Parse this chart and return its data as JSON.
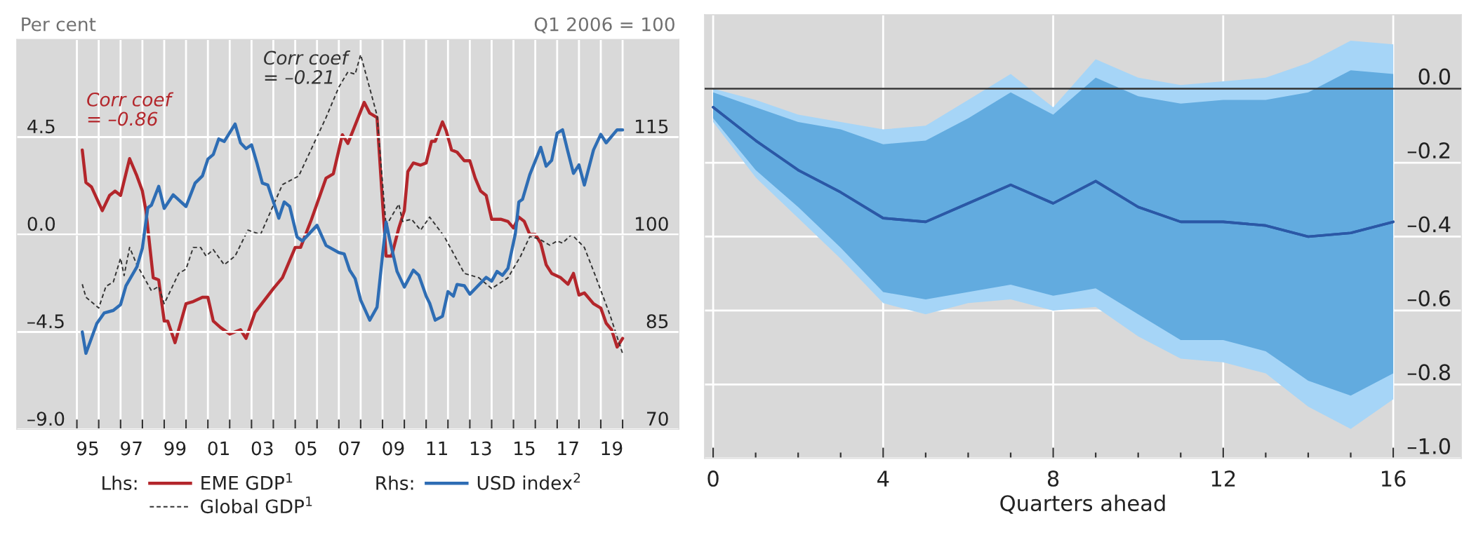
{
  "chart_data": [
    {
      "type": "line",
      "ylabel": "Per cent",
      "y2label": "Q1 2006 = 100",
      "xlim": [
        "1992-04",
        "2022-08"
      ],
      "xticks": [
        {
          "value": "1995-01",
          "label": null
        },
        {
          "value": "1996-01",
          "label": null
        },
        {
          "value": "1997-01",
          "label": null
        },
        {
          "value": "1998-01",
          "label": null
        },
        {
          "value": "1999-01",
          "label": null
        },
        {
          "value": "2000-01",
          "label": null
        },
        {
          "value": "2001-01",
          "label": null
        },
        {
          "value": "2002-01",
          "label": null
        },
        {
          "value": "2003-01",
          "label": null
        },
        {
          "value": "2004-01",
          "label": null
        },
        {
          "value": "2005-01",
          "label": null
        },
        {
          "value": "2006-01",
          "label": null
        },
        {
          "value": "2007-01",
          "label": null
        },
        {
          "value": "2008-01",
          "label": null
        },
        {
          "value": "2009-01",
          "label": null
        },
        {
          "value": "2010-01",
          "label": null
        },
        {
          "value": "2011-01",
          "label": null
        },
        {
          "value": "2012-01",
          "label": null
        },
        {
          "value": "2013-01",
          "label": null
        },
        {
          "value": "2014-01",
          "label": null
        },
        {
          "value": "2015-01",
          "label": null
        },
        {
          "value": "2016-01",
          "label": null
        },
        {
          "value": "2017-01",
          "label": null
        },
        {
          "value": "2018-01",
          "label": null
        },
        {
          "value": "2019-01",
          "label": null
        },
        {
          "value": "2020-01",
          "label": null
        },
        {
          "value": "1995-07",
          "label": "95"
        },
        {
          "value": "1997-07",
          "label": "97"
        },
        {
          "value": "1999-07",
          "label": "99"
        },
        {
          "value": "2001-07",
          "label": "01"
        },
        {
          "value": "2003-07",
          "label": "03"
        },
        {
          "value": "2005-07",
          "label": "05"
        },
        {
          "value": "2007-07",
          "label": "07"
        },
        {
          "value": "2009-07",
          "label": "09"
        },
        {
          "value": "2011-07",
          "label": "11"
        },
        {
          "value": "2013-07",
          "label": "13"
        },
        {
          "value": "2015-07",
          "label": "15"
        },
        {
          "value": "2017-07",
          "label": "17"
        },
        {
          "value": "2019-07",
          "label": "19"
        }
      ],
      "ylim": [
        -9,
        9
      ],
      "yticks": [
        {
          "value": -9,
          "label": "–9.0"
        },
        {
          "value": -4.5,
          "label": "–4.5"
        },
        {
          "value": 0,
          "label": "0.0"
        },
        4.5
      ],
      "y2lim": [
        70,
        130
      ],
      "y2ticks": [
        70,
        85,
        100,
        115
      ],
      "grid": true,
      "legend": "bottom",
      "ref_lines": [
        {
          "axis": "y",
          "value": 0
        }
      ],
      "annotations": [
        "Corr coef\n= –0.86",
        "Corr coef\n= –0.21",
        "Lhs:",
        "Rhs:"
      ],
      "series": [
        {
          "name": "EME GDP$^{1}$",
          "color": "#b3262b",
          "x": [
            "1995-04",
            "1995-06",
            "1995-09",
            "1996-03",
            "1996-07",
            "1996-10",
            "1997-01",
            "1997-06",
            "1997-10",
            "1998-01",
            "1998-03",
            "1998-07",
            "1998-10",
            "1999-01",
            "1999-03",
            "1999-07",
            "2000-01",
            "2000-05",
            "2000-10",
            "2001-01",
            "2001-04",
            "2001-08",
            "2002-01",
            "2002-07",
            "2002-10",
            "2003-03",
            "2004-01",
            "2004-06",
            "2005-01",
            "2005-04",
            "2005-10",
            "2006-06",
            "2006-10",
            "2007-03",
            "2007-06",
            "2008-03",
            "2008-06",
            "2008-10",
            "2009-03",
            "2009-06",
            "2009-10",
            "2010-01",
            "2010-03",
            "2010-06",
            "2010-10",
            "2011-01",
            "2011-04",
            "2011-06",
            "2011-10",
            "2011-12",
            "2012-03",
            "2012-06",
            "2012-10",
            "2013-01",
            "2013-04",
            "2013-07",
            "2013-10",
            "2014-01",
            "2014-06",
            "2014-10",
            "2015-01",
            "2015-04",
            "2015-07",
            "2015-10",
            "2016-01",
            "2016-04",
            "2016-07",
            "2016-10",
            "2017-03",
            "2017-07",
            "2017-10",
            "2018-01",
            "2018-04",
            "2018-09",
            "2019-01",
            "2019-04",
            "2019-07",
            "2019-10",
            "2020-01"
          ],
          "values": [
            3.9,
            2.4,
            2.2,
            1.1,
            1.8,
            2.0,
            1.8,
            3.5,
            2.7,
            2.0,
            1.1,
            -2.0,
            -2.1,
            -4.0,
            -4.0,
            -5.0,
            -3.2,
            -3.1,
            -2.9,
            -2.9,
            -4.0,
            -4.3,
            -4.6,
            -4.4,
            -4.8,
            -3.6,
            -2.5,
            -2.0,
            -0.6,
            -0.6,
            0.7,
            2.6,
            2.8,
            4.6,
            4.2,
            6.1,
            5.6,
            5.4,
            -1.0,
            -1.0,
            0.3,
            1.1,
            2.9,
            3.3,
            3.2,
            3.3,
            4.3,
            4.3,
            5.2,
            4.8,
            3.9,
            3.8,
            3.4,
            3.4,
            2.6,
            2.0,
            1.8,
            0.7,
            0.7,
            0.6,
            0.3,
            0.8,
            0.6,
            0.0,
            0.0,
            -0.4,
            -1.4,
            -1.8,
            -2.0,
            -2.3,
            -1.8,
            -2.8,
            -2.7,
            -3.2,
            -3.4,
            -4.1,
            -4.4,
            -5.2,
            -4.8
          ]
        },
        {
          "name": "Global GDP$^{1}$",
          "color": "#333333",
          "line_style": "dashed",
          "x": [
            "1995-04",
            "1995-06",
            "1996-01",
            "1996-05",
            "1996-09",
            "1997-01",
            "1997-03",
            "1997-06",
            "1997-10",
            "1998-06",
            "1998-10",
            "1999-01",
            "1999-09",
            "2000-01",
            "2000-05",
            "2000-09",
            "2000-12",
            "2001-04",
            "2001-10",
            "2002-04",
            "2002-11",
            "2003-06",
            "2004-06",
            "2005-03",
            "2006-06",
            "2007-01",
            "2007-06",
            "2007-10",
            "2008-01",
            "2008-10",
            "2009-03",
            "2009-10",
            "2009-12",
            "2010-05",
            "2010-10",
            "2011-03",
            "2011-11",
            "2012-10",
            "2013-06",
            "2014-01",
            "2014-10",
            "2015-05",
            "2015-10",
            "2016-03",
            "2016-09",
            "2017-01",
            "2017-04",
            "2017-09",
            "2018-04",
            "2018-10",
            "2019-06",
            "2020-01"
          ],
          "values": [
            -2.3,
            -2.9,
            -3.4,
            -2.4,
            -2.2,
            -1.1,
            -1.9,
            -0.6,
            -1.4,
            -2.6,
            -2.4,
            -3.2,
            -1.8,
            -1.6,
            -0.6,
            -0.6,
            -1.0,
            -0.7,
            -1.4,
            -1.0,
            0.2,
            0.0,
            2.3,
            2.7,
            5.4,
            6.8,
            7.5,
            7.4,
            8.3,
            5.5,
            0.4,
            1.4,
            0.6,
            0.7,
            0.2,
            0.8,
            -0.1,
            -1.8,
            -2.0,
            -2.5,
            -2.0,
            -1.0,
            -0.1,
            -0.2,
            -0.5,
            -0.3,
            -0.4,
            0.0,
            -0.6,
            -1.9,
            -3.7,
            -5.5
          ]
        },
        {
          "name": "USD index$^{2}$",
          "color": "#2e6db4",
          "axis": "y2",
          "x": [
            "1995-04",
            "1995-06",
            "1995-12",
            "1996-04",
            "1996-09",
            "1997-01",
            "1997-04",
            "1997-10",
            "1998-01",
            "1998-04",
            "1998-06",
            "1998-10",
            "1999-01",
            "1999-06",
            "2000-01",
            "2000-06",
            "2000-10",
            "2001-01",
            "2001-04",
            "2001-07",
            "2001-10",
            "2002-04",
            "2002-07",
            "2002-10",
            "2003-01",
            "2003-04",
            "2003-07",
            "2003-10",
            "2004-04",
            "2004-07",
            "2004-10",
            "2005-02",
            "2005-05",
            "2006-01",
            "2006-06",
            "2007-01",
            "2007-04",
            "2007-07",
            "2007-10",
            "2008-01",
            "2008-06",
            "2008-10",
            "2009-03",
            "2009-05",
            "2009-09",
            "2010-01",
            "2010-06",
            "2010-09",
            "2011-01",
            "2011-03",
            "2011-06",
            "2011-10",
            "2012-01",
            "2012-04",
            "2012-06",
            "2012-10",
            "2013-01",
            "2013-10",
            "2014-01",
            "2014-04",
            "2014-07",
            "2014-10",
            "2015-02",
            "2015-04",
            "2015-06",
            "2015-10",
            "2016-04",
            "2016-07",
            "2016-10",
            "2017-01",
            "2017-04",
            "2017-07",
            "2017-10",
            "2018-01",
            "2018-04",
            "2018-09",
            "2019-01",
            "2019-04",
            "2019-10",
            "2020-01"
          ],
          "values": [
            85,
            81.7,
            86.3,
            87.9,
            88.3,
            89.2,
            92.1,
            95,
            97.9,
            104.1,
            104.5,
            107.4,
            104,
            106.1,
            104.3,
            107.9,
            109,
            111.6,
            112.3,
            114.7,
            114.3,
            117,
            114.1,
            113.2,
            113.8,
            111,
            107.9,
            107.6,
            102.5,
            105,
            104.3,
            99.6,
            99,
            101.4,
            98.3,
            97.2,
            97,
            94.5,
            93.2,
            89.9,
            86.8,
            88.8,
            101.9,
            99.2,
            94.3,
            91.9,
            94.5,
            93.7,
            90.5,
            89.4,
            86.8,
            87.4,
            91.2,
            90.5,
            92.3,
            92.1,
            90.8,
            93.4,
            92.8,
            94.3,
            93.7,
            94.8,
            100.1,
            105,
            105.4,
            109.2,
            113.4,
            110.5,
            111.4,
            115.6,
            116.1,
            112.7,
            109.4,
            110.7,
            107.6,
            113,
            115.4,
            114.1,
            116.1,
            116.1
          ]
        }
      ]
    },
    {
      "type": "line",
      "xlabel": "Quarters ahead",
      "xlim": [
        -0.2,
        17.6
      ],
      "xticks": [
        0,
        {
          "value": 1,
          "label": null
        },
        {
          "value": 2,
          "label": null
        },
        {
          "value": 3,
          "label": null
        },
        4,
        {
          "value": 5,
          "label": null
        },
        {
          "value": 6,
          "label": null
        },
        {
          "value": 7,
          "label": null
        },
        8,
        {
          "value": 9,
          "label": null
        },
        {
          "value": 10,
          "label": null
        },
        {
          "value": 11,
          "label": null
        },
        12,
        {
          "value": 13,
          "label": null
        },
        {
          "value": 14,
          "label": null
        },
        {
          "value": 15,
          "label": null
        },
        16
      ],
      "y2lim": [
        -1.0,
        0.2
      ],
      "y2ticks": [
        {
          "value": -1.0,
          "label": "–1.0"
        },
        {
          "value": -0.8,
          "label": "–0.8"
        },
        {
          "value": -0.6,
          "label": "–0.6"
        },
        {
          "value": -0.4,
          "label": "–0.4"
        },
        {
          "value": -0.2,
          "label": "–0.2"
        },
        {
          "value": 0.0,
          "label": "0.0"
        }
      ],
      "grid": true,
      "ref_lines": [
        {
          "axis": "y2",
          "value": 0
        }
      ],
      "x": [
        0,
        1,
        2,
        3,
        4,
        5,
        6,
        7,
        8,
        9,
        10,
        11,
        12,
        13,
        14,
        15,
        16
      ],
      "series": [
        {
          "color": "#2b58a6",
          "axis": "y2",
          "values": [
            -0.05,
            -0.14,
            -0.22,
            -0.28,
            -0.35,
            -0.36,
            -0.31,
            -0.26,
            -0.31,
            -0.25,
            -0.32,
            -0.36,
            -0.36,
            -0.37,
            -0.4,
            -0.39,
            -0.36
          ],
          "upper": [
            0.0,
            -0.03,
            -0.07,
            -0.09,
            -0.11,
            -0.1,
            -0.03,
            0.04,
            -0.05,
            0.08,
            0.03,
            0.01,
            0.02,
            0.03,
            0.07,
            0.13,
            0.12
          ],
          "lower": [
            -0.09,
            -0.24,
            -0.35,
            -0.46,
            -0.58,
            -0.61,
            -0.58,
            -0.57,
            -0.6,
            -0.59,
            -0.67,
            -0.73,
            -0.74,
            -0.77,
            -0.86,
            -0.92,
            -0.84
          ]
        },
        {
          "color": "#2b58a6",
          "axis": "y2",
          "values": [
            -0.05,
            -0.14,
            -0.22,
            -0.28,
            -0.35,
            -0.36,
            -0.31,
            -0.26,
            -0.31,
            -0.25,
            -0.32,
            -0.36,
            -0.36,
            -0.37,
            -0.4,
            -0.39,
            -0.36
          ],
          "upper": [
            -0.01,
            -0.05,
            -0.09,
            -0.11,
            -0.15,
            -0.14,
            -0.08,
            -0.01,
            -0.07,
            0.03,
            -0.02,
            -0.04,
            -0.03,
            -0.03,
            -0.01,
            0.05,
            0.04
          ],
          "lower": [
            -0.08,
            -0.22,
            -0.32,
            -0.43,
            -0.55,
            -0.57,
            -0.55,
            -0.53,
            -0.56,
            -0.54,
            -0.61,
            -0.68,
            -0.68,
            -0.71,
            -0.79,
            -0.83,
            -0.77
          ]
        }
      ]
    }
  ]
}
